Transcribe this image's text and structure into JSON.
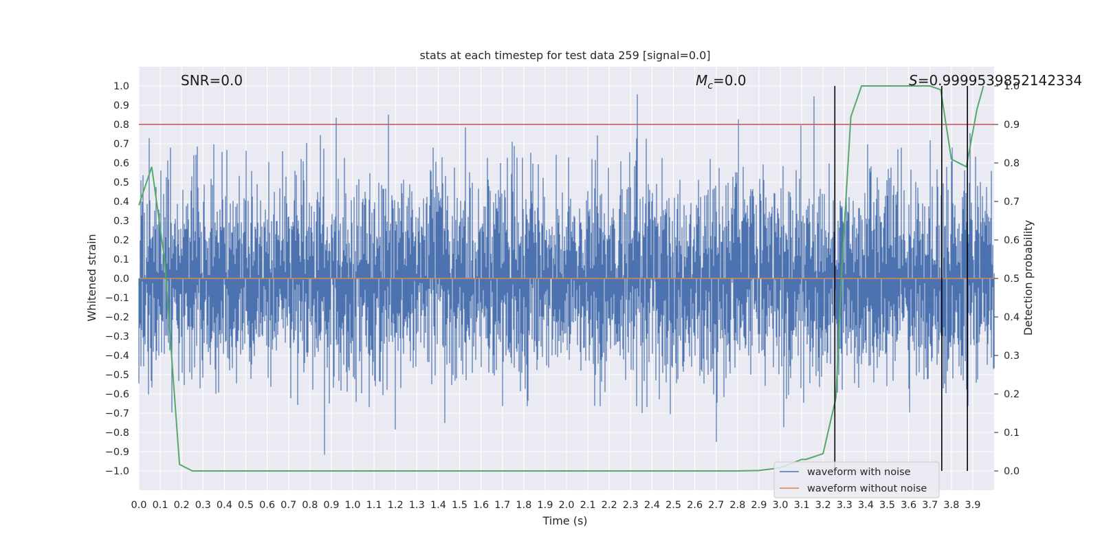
{
  "chart_data": {
    "type": "line",
    "title": "stats at each timestep for test data 259 [signal=0.0]",
    "xlabel": "Time (s)",
    "ylabel": "Whitened strain",
    "y2label": "Detection probability",
    "xlim": [
      0.0,
      4.0
    ],
    "ylim": [
      -1.1,
      1.1
    ],
    "y2lim": [
      -0.05,
      1.05
    ],
    "x_ticks": [
      "0.0",
      "0.1",
      "0.2",
      "0.3",
      "0.4",
      "0.5",
      "0.6",
      "0.7",
      "0.8",
      "0.9",
      "1.0",
      "1.1",
      "1.2",
      "1.3",
      "1.4",
      "1.5",
      "1.6",
      "1.7",
      "1.8",
      "1.9",
      "2.0",
      "2.1",
      "2.2",
      "2.3",
      "2.4",
      "2.5",
      "2.6",
      "2.7",
      "2.8",
      "2.9",
      "3.0",
      "3.1",
      "3.2",
      "3.3",
      "3.4",
      "3.5",
      "3.6",
      "3.7",
      "3.8",
      "3.9"
    ],
    "y_ticks": [
      "1.0",
      "0.9",
      "0.8",
      "0.7",
      "0.6",
      "0.5",
      "0.4",
      "0.3",
      "0.2",
      "0.1",
      "0.0",
      "−0.1",
      "−0.2",
      "−0.3",
      "−0.4",
      "−0.5",
      "−0.6",
      "−0.7",
      "−0.8",
      "−0.9",
      "−1.0"
    ],
    "y2_ticks": [
      "1.0",
      "0.9",
      "0.8",
      "0.7",
      "0.6",
      "0.5",
      "0.4",
      "0.3",
      "0.2",
      "0.1",
      "0.0"
    ],
    "grid": true,
    "legend_position": "bottom-right",
    "colors": {
      "noise": "#4c72b0",
      "clean": "#dd8452",
      "probability": "#55a868",
      "threshold": "#c44e52",
      "marker": "#000000",
      "background": "#eaeaf2"
    },
    "series": [
      {
        "name": "waveform with noise",
        "noise_amplitude": 0.25,
        "peak_max": 1.0,
        "peak_min": -0.97
      },
      {
        "name": "waveform without noise",
        "values": "constant",
        "y": 0.0
      }
    ],
    "probability_curve": {
      "x": [
        0.0,
        0.06,
        0.12,
        0.19,
        0.25,
        0.5,
        1.0,
        1.5,
        2.0,
        2.5,
        2.8,
        2.9,
        3.0,
        3.1,
        3.12,
        3.2,
        3.26,
        3.29,
        3.33,
        3.38,
        3.5,
        3.6,
        3.7,
        3.75,
        3.8,
        3.87,
        3.92,
        3.95
      ],
      "y": [
        0.69,
        0.79,
        0.55,
        0.017,
        0.0,
        0.0,
        0.0,
        0.0,
        0.0,
        0.0,
        0.0,
        0.001,
        0.008,
        0.03,
        0.03,
        0.045,
        0.19,
        0.55,
        0.92,
        1.0,
        1.0,
        1.0,
        1.0,
        0.99,
        0.81,
        0.79,
        0.94,
        1.0
      ]
    },
    "threshold_line": {
      "y2": 0.9
    },
    "marker_lines": [
      {
        "x": 3.255,
        "y_top": 1.0,
        "y_bottom": -1.0
      },
      {
        "x": 3.755,
        "y_top": 1.0,
        "y_bottom": -1.0
      },
      {
        "x": 3.875,
        "y_top": 1.0,
        "y_bottom": -1.0
      }
    ],
    "annotations": {
      "snr": "SNR=0.0",
      "mc_symbol": "M",
      "mc_sub": "c",
      "mc_value": "=0.0",
      "s_symbol": "S",
      "s_value": "=0.9999539852142334"
    }
  }
}
